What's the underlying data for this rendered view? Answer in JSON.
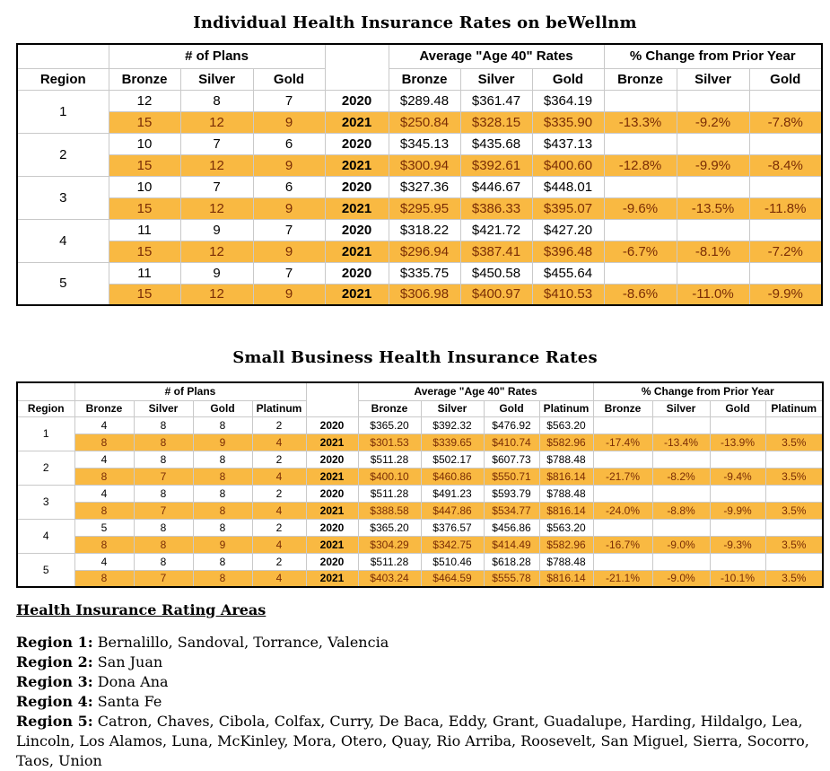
{
  "colors": {
    "highlight": "#F9B942",
    "highlight_text": "#7B2D05",
    "grid_line": "#C9C9C9",
    "table_border": "#000000"
  },
  "tables": [
    {
      "title": "Individual Health Insurance Rates on beWellnm",
      "region_header": "Region",
      "group_headers": [
        "# of Plans",
        "Average \"Age 40\" Rates",
        "% Change from Prior Year"
      ],
      "metal_headers": [
        "Bronze",
        "Silver",
        "Gold"
      ],
      "regions": [
        {
          "region": "1",
          "rows": [
            {
              "year": "2020",
              "highlight": false,
              "plans": [
                "12",
                "8",
                "7"
              ],
              "rates": [
                "$289.48",
                "$361.47",
                "$364.19"
              ],
              "change": [
                "",
                "",
                ""
              ]
            },
            {
              "year": "2021",
              "highlight": true,
              "plans": [
                "15",
                "12",
                "9"
              ],
              "rates": [
                "$250.84",
                "$328.15",
                "$335.90"
              ],
              "change": [
                "-13.3%",
                "-9.2%",
                "-7.8%"
              ]
            }
          ]
        },
        {
          "region": "2",
          "rows": [
            {
              "year": "2020",
              "highlight": false,
              "plans": [
                "10",
                "7",
                "6"
              ],
              "rates": [
                "$345.13",
                "$435.68",
                "$437.13"
              ],
              "change": [
                "",
                "",
                ""
              ]
            },
            {
              "year": "2021",
              "highlight": true,
              "plans": [
                "15",
                "12",
                "9"
              ],
              "rates": [
                "$300.94",
                "$392.61",
                "$400.60"
              ],
              "change": [
                "-12.8%",
                "-9.9%",
                "-8.4%"
              ]
            }
          ]
        },
        {
          "region": "3",
          "rows": [
            {
              "year": "2020",
              "highlight": false,
              "plans": [
                "10",
                "7",
                "6"
              ],
              "rates": [
                "$327.36",
                "$446.67",
                "$448.01"
              ],
              "change": [
                "",
                "",
                ""
              ]
            },
            {
              "year": "2021",
              "highlight": true,
              "plans": [
                "15",
                "12",
                "9"
              ],
              "rates": [
                "$295.95",
                "$386.33",
                "$395.07"
              ],
              "change": [
                "-9.6%",
                "-13.5%",
                "-11.8%"
              ]
            }
          ]
        },
        {
          "region": "4",
          "rows": [
            {
              "year": "2020",
              "highlight": false,
              "plans": [
                "11",
                "9",
                "7"
              ],
              "rates": [
                "$318.22",
                "$421.72",
                "$427.20"
              ],
              "change": [
                "",
                "",
                ""
              ]
            },
            {
              "year": "2021",
              "highlight": true,
              "plans": [
                "15",
                "12",
                "9"
              ],
              "rates": [
                "$296.94",
                "$387.41",
                "$396.48"
              ],
              "change": [
                "-6.7%",
                "-8.1%",
                "-7.2%"
              ]
            }
          ]
        },
        {
          "region": "5",
          "rows": [
            {
              "year": "2020",
              "highlight": false,
              "plans": [
                "11",
                "9",
                "7"
              ],
              "rates": [
                "$335.75",
                "$450.58",
                "$455.64"
              ],
              "change": [
                "",
                "",
                ""
              ]
            },
            {
              "year": "2021",
              "highlight": true,
              "plans": [
                "15",
                "12",
                "9"
              ],
              "rates": [
                "$306.98",
                "$400.97",
                "$410.53"
              ],
              "change": [
                "-8.6%",
                "-11.0%",
                "-9.9%"
              ]
            }
          ]
        }
      ]
    },
    {
      "title": "Small Business Health Insurance Rates",
      "region_header": "Region",
      "group_headers": [
        "# of Plans",
        "Average \"Age 40\" Rates",
        "% Change from Prior Year"
      ],
      "metal_headers": [
        "Bronze",
        "Silver",
        "Gold",
        "Platinum"
      ],
      "regions": [
        {
          "region": "1",
          "rows": [
            {
              "year": "2020",
              "highlight": false,
              "plans": [
                "4",
                "8",
                "8",
                "2"
              ],
              "rates": [
                "$365.20",
                "$392.32",
                "$476.92",
                "$563.20"
              ],
              "change": [
                "",
                "",
                "",
                ""
              ]
            },
            {
              "year": "2021",
              "highlight": true,
              "plans": [
                "8",
                "8",
                "9",
                "4"
              ],
              "rates": [
                "$301.53",
                "$339.65",
                "$410.74",
                "$582.96"
              ],
              "change": [
                "-17.4%",
                "-13.4%",
                "-13.9%",
                "3.5%"
              ]
            }
          ]
        },
        {
          "region": "2",
          "rows": [
            {
              "year": "2020",
              "highlight": false,
              "plans": [
                "4",
                "8",
                "8",
                "2"
              ],
              "rates": [
                "$511.28",
                "$502.17",
                "$607.73",
                "$788.48"
              ],
              "change": [
                "",
                "",
                "",
                ""
              ]
            },
            {
              "year": "2021",
              "highlight": true,
              "plans": [
                "8",
                "7",
                "8",
                "4"
              ],
              "rates": [
                "$400.10",
                "$460.86",
                "$550.71",
                "$816.14"
              ],
              "change": [
                "-21.7%",
                "-8.2%",
                "-9.4%",
                "3.5%"
              ]
            }
          ]
        },
        {
          "region": "3",
          "rows": [
            {
              "year": "2020",
              "highlight": false,
              "plans": [
                "4",
                "8",
                "8",
                "2"
              ],
              "rates": [
                "$511.28",
                "$491.23",
                "$593.79",
                "$788.48"
              ],
              "change": [
                "",
                "",
                "",
                ""
              ]
            },
            {
              "year": "2021",
              "highlight": true,
              "plans": [
                "8",
                "7",
                "8",
                "4"
              ],
              "rates": [
                "$388.58",
                "$447.86",
                "$534.77",
                "$816.14"
              ],
              "change": [
                "-24.0%",
                "-8.8%",
                "-9.9%",
                "3.5%"
              ]
            }
          ]
        },
        {
          "region": "4",
          "rows": [
            {
              "year": "2020",
              "highlight": false,
              "plans": [
                "5",
                "8",
                "8",
                "2"
              ],
              "rates": [
                "$365.20",
                "$376.57",
                "$456.86",
                "$563.20"
              ],
              "change": [
                "",
                "",
                "",
                ""
              ]
            },
            {
              "year": "2021",
              "highlight": true,
              "plans": [
                "8",
                "8",
                "9",
                "4"
              ],
              "rates": [
                "$304.29",
                "$342.75",
                "$414.49",
                "$582.96"
              ],
              "change": [
                "-16.7%",
                "-9.0%",
                "-9.3%",
                "3.5%"
              ]
            }
          ]
        },
        {
          "region": "5",
          "rows": [
            {
              "year": "2020",
              "highlight": false,
              "plans": [
                "4",
                "8",
                "8",
                "2"
              ],
              "rates": [
                "$511.28",
                "$510.46",
                "$618.28",
                "$788.48"
              ],
              "change": [
                "",
                "",
                "",
                ""
              ]
            },
            {
              "year": "2021",
              "highlight": true,
              "plans": [
                "8",
                "7",
                "8",
                "4"
              ],
              "rates": [
                "$403.24",
                "$464.59",
                "$555.78",
                "$816.14"
              ],
              "change": [
                "-21.1%",
                "-9.0%",
                "-10.1%",
                "3.5%"
              ]
            }
          ]
        }
      ]
    }
  ],
  "footer": {
    "heading": "Health Insurance Rating Areas",
    "regions": [
      {
        "label": "Region 1:",
        "text": "Bernalillo, Sandoval, Torrance, Valencia"
      },
      {
        "label": "Region 2:",
        "text": "San Juan"
      },
      {
        "label": "Region 3:",
        "text": "Dona Ana"
      },
      {
        "label": "Region 4:",
        "text": "Santa Fe"
      },
      {
        "label": "Region 5:",
        "text": "Catron, Chaves, Cibola, Colfax, Curry, De Baca, Eddy, Grant, Guadalupe, Harding, Hildalgo, Lea, Lincoln, Los Alamos, Luna, McKinley, Mora, Otero, Quay, Rio Arriba, Roosevelt, San Miguel, Sierra, Socorro, Taos, Union"
      }
    ]
  }
}
